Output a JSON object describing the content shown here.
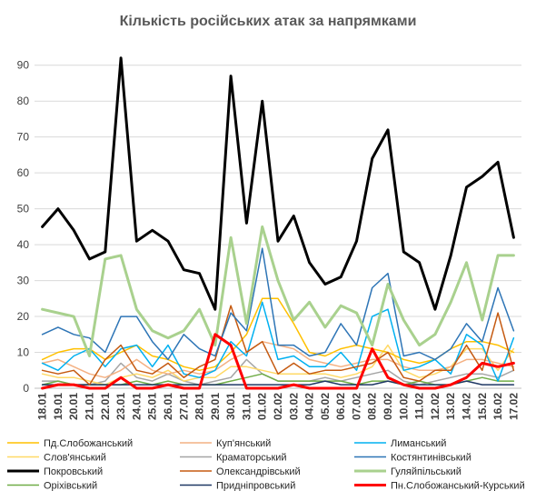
{
  "chart_data": {
    "type": "line",
    "title": "Кількість російських атак за напрямками",
    "xlabel": "",
    "ylabel": "",
    "ylim": [
      0,
      95
    ],
    "yticks": [
      0,
      10,
      20,
      30,
      40,
      50,
      60,
      70,
      80,
      90
    ],
    "grid": "horizontal",
    "legend_position": "bottom",
    "x": [
      "18.01",
      "19.01",
      "20.01",
      "21.01",
      "22.01",
      "23.01",
      "24.01",
      "25.01",
      "26.01",
      "27.01",
      "28.01",
      "29.01",
      "30.01",
      "31.01",
      "01.02",
      "02.02",
      "03.02",
      "04.02",
      "05.02",
      "06.02",
      "07.02",
      "08.02",
      "09.02",
      "10.02",
      "11.02",
      "12.02",
      "13.02",
      "14.02",
      "15.02",
      "16.02",
      "17.02"
    ],
    "series": [
      {
        "name": "Пд.Слобожанський",
        "color": "#FFC000",
        "width": 1.5,
        "values": [
          8,
          10,
          11,
          11,
          8,
          10,
          12,
          9,
          8,
          6,
          5,
          6,
          10,
          15,
          25,
          25,
          18,
          10,
          9,
          11,
          12,
          11,
          10,
          8,
          7,
          8,
          11,
          13,
          13,
          12,
          10
        ]
      },
      {
        "name": "Куп'янський",
        "color": "#F4B183",
        "width": 1.5,
        "values": [
          7,
          8,
          6,
          4,
          3,
          5,
          8,
          5,
          4,
          5,
          4,
          5,
          8,
          10,
          13,
          12,
          11,
          8,
          7,
          6,
          7,
          8,
          8,
          6,
          5,
          5,
          6,
          8,
          8,
          7,
          6
        ]
      },
      {
        "name": "Лиманський",
        "color": "#00B0F0",
        "width": 1.5,
        "values": [
          7,
          5,
          9,
          11,
          6,
          11,
          12,
          6,
          12,
          4,
          3,
          5,
          13,
          9,
          24,
          8,
          9,
          6,
          6,
          10,
          5,
          20,
          22,
          5,
          6,
          8,
          4,
          15,
          12,
          2,
          14
        ]
      },
      {
        "name": "Слов'янський",
        "color": "#FFD966",
        "width": 1.5,
        "values": [
          4,
          3,
          3,
          2,
          1,
          3,
          4,
          3,
          5,
          2,
          3,
          3,
          6,
          6,
          5,
          4,
          4,
          4,
          4,
          3,
          4,
          6,
          12,
          5,
          3,
          4,
          6,
          11,
          11,
          5,
          11
        ]
      },
      {
        "name": "Краматорський",
        "color": "#A5A5A5",
        "width": 1.5,
        "values": [
          2,
          2,
          1,
          1,
          2,
          7,
          3,
          2,
          4,
          2,
          1,
          2,
          3,
          8,
          4,
          2,
          2,
          2,
          3,
          2,
          3,
          4,
          5,
          2,
          1,
          2,
          3,
          4,
          4,
          3,
          5
        ]
      },
      {
        "name": "Костянтинівський",
        "color": "#2E75B6",
        "width": 1.5,
        "values": [
          15,
          17,
          15,
          14,
          10,
          20,
          20,
          13,
          8,
          15,
          11,
          9,
          21,
          16,
          39,
          12,
          12,
          9,
          10,
          18,
          12,
          28,
          32,
          9,
          10,
          8,
          11,
          18,
          13,
          28,
          16
        ]
      },
      {
        "name": "Покровський",
        "color": "#000000",
        "width": 3,
        "values": [
          45,
          50,
          44,
          36,
          38,
          92,
          41,
          44,
          41,
          33,
          32,
          22,
          87,
          46,
          80,
          41,
          48,
          35,
          29,
          31,
          41,
          64,
          72,
          38,
          35,
          22,
          37,
          56,
          59,
          63,
          42
        ]
      },
      {
        "name": "Олександрівський",
        "color": "#C55A11",
        "width": 1.5,
        "values": [
          5,
          4,
          5,
          1,
          8,
          12,
          5,
          4,
          7,
          3,
          6,
          8,
          23,
          10,
          13,
          4,
          7,
          4,
          5,
          5,
          6,
          7,
          10,
          3,
          2,
          5,
          5,
          12,
          5,
          21,
          5
        ]
      },
      {
        "name": "Гуляйпільський",
        "color": "#A9D18E",
        "width": 3,
        "values": [
          22,
          21,
          20,
          9,
          36,
          37,
          22,
          16,
          14,
          16,
          22,
          12,
          42,
          18,
          45,
          30,
          19,
          24,
          17,
          23,
          21,
          12,
          29,
          19,
          12,
          15,
          24,
          35,
          19,
          37,
          37
        ]
      },
      {
        "name": "Оріхівський",
        "color": "#70AD47",
        "width": 1.5,
        "values": [
          1,
          2,
          1,
          1,
          1,
          1,
          2,
          1,
          2,
          1,
          1,
          1,
          2,
          3,
          4,
          2,
          2,
          2,
          2,
          2,
          1,
          2,
          2,
          1,
          2,
          1,
          1,
          2,
          3,
          2,
          2
        ]
      },
      {
        "name": "Придніпровський",
        "color": "#1F3864",
        "width": 1.5,
        "values": [
          1,
          1,
          1,
          1,
          1,
          1,
          1,
          1,
          1,
          1,
          1,
          1,
          1,
          1,
          1,
          1,
          1,
          1,
          2,
          1,
          1,
          1,
          2,
          1,
          1,
          1,
          1,
          2,
          1,
          1,
          1
        ]
      },
      {
        "name": "Пн.Слобожанський-Курський",
        "color": "#FF0000",
        "width": 3,
        "values": [
          0,
          1,
          1,
          0,
          0,
          3,
          0,
          0,
          1,
          0,
          0,
          15,
          12,
          0,
          0,
          0,
          1,
          0,
          0,
          0,
          0,
          11,
          3,
          1,
          0,
          0,
          1,
          3,
          7,
          6,
          7
        ]
      }
    ]
  }
}
